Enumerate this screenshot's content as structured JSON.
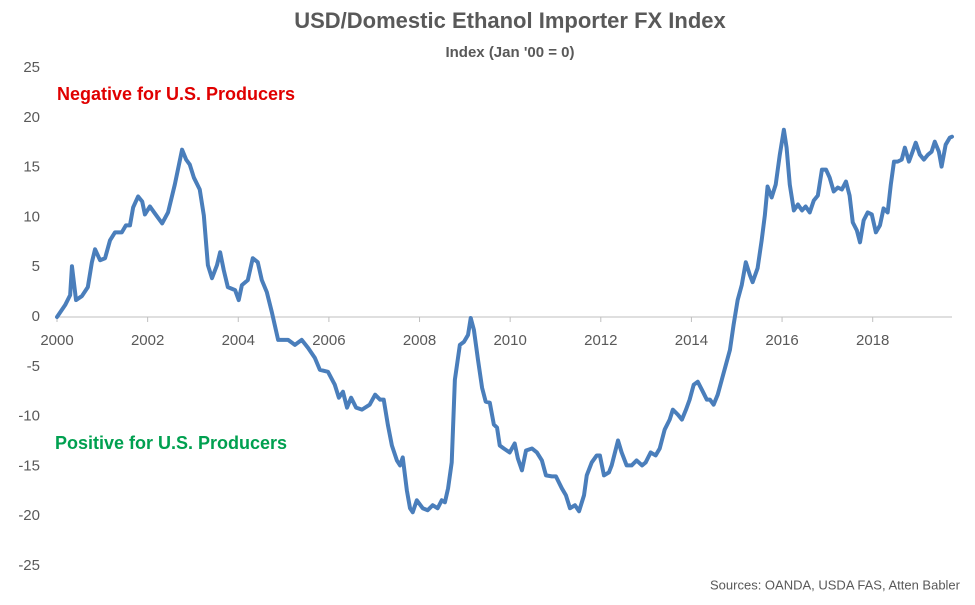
{
  "chart_data": {
    "type": "line",
    "title": "USD/Domestic Ethanol Importer FX Index",
    "subtitle": "Index (Jan '00 = 0)",
    "annotations": [
      {
        "text": "Negative for U.S. Producers",
        "color": "#e00000"
      },
      {
        "text": "Positive for U.S. Producers",
        "color": "#00a050"
      }
    ],
    "source": "Sources: OANDA, USDA FAS, Atten Babler",
    "xlim": [
      2000,
      2019.75
    ],
    "xticks": [
      2000,
      2002,
      2004,
      2006,
      2008,
      2010,
      2012,
      2014,
      2016,
      2018
    ],
    "ylim": [
      -25,
      25
    ],
    "yticks": [
      -25,
      -20,
      -15,
      -10,
      -5,
      0,
      5,
      10,
      15,
      20,
      25
    ],
    "grid": false,
    "x": [
      2000,
      2000.18,
      2000.29,
      2000.33,
      2000.42,
      2000.55,
      2000.68,
      2000.77,
      2000.84,
      2000.95,
      2001.06,
      2001.17,
      2001.28,
      2001.43,
      2001.52,
      2001.61,
      2001.68,
      2001.79,
      2001.88,
      2001.94,
      2002.05,
      2002.16,
      2002.32,
      2002.45,
      2002.6,
      2002.76,
      2002.85,
      2002.93,
      2003.02,
      2003.15,
      2003.24,
      2003.33,
      2003.42,
      2003.53,
      2003.6,
      2003.68,
      2003.77,
      2003.93,
      2004.01,
      2004.08,
      2004.21,
      2004.32,
      2004.43,
      2004.52,
      2004.63,
      2004.74,
      2004.88,
      2005.1,
      2005.25,
      2005.4,
      2005.54,
      2005.69,
      2005.8,
      2005.98,
      2006.13,
      2006.22,
      2006.31,
      2006.4,
      2006.49,
      2006.6,
      2006.73,
      2006.9,
      2007.02,
      2007.13,
      2007.21,
      2007.3,
      2007.39,
      2007.5,
      2007.57,
      2007.63,
      2007.72,
      2007.79,
      2007.85,
      2007.94,
      2008.07,
      2008.18,
      2008.29,
      2008.4,
      2008.49,
      2008.56,
      2008.63,
      2008.71,
      2008.78,
      2008.89,
      2008.98,
      2009.07,
      2009.13,
      2009.2,
      2009.29,
      2009.38,
      2009.46,
      2009.55,
      2009.64,
      2009.71,
      2009.77,
      2009.86,
      2009.99,
      2010.1,
      2010.17,
      2010.26,
      2010.35,
      2010.48,
      2010.59,
      2010.7,
      2010.79,
      2010.92,
      2011.01,
      2011.14,
      2011.23,
      2011.32,
      2011.43,
      2011.52,
      2011.63,
      2011.69,
      2011.8,
      2011.91,
      2011.98,
      2012.07,
      2012.18,
      2012.24,
      2012.38,
      2012.46,
      2012.57,
      2012.68,
      2012.79,
      2012.91,
      2012.99,
      2013.1,
      2013.21,
      2013.3,
      2013.41,
      2013.52,
      2013.59,
      2013.7,
      2013.79,
      2013.88,
      2013.96,
      2014.05,
      2014.14,
      2014.23,
      2014.34,
      2014.41,
      2014.49,
      2014.58,
      2014.67,
      2014.76,
      2014.85,
      2014.93,
      2015.02,
      2015.11,
      2015.2,
      2015.29,
      2015.35,
      2015.46,
      2015.55,
      2015.62,
      2015.68,
      2015.77,
      2015.86,
      2015.95,
      2016.04,
      2016.1,
      2016.17,
      2016.26,
      2016.35,
      2016.44,
      2016.52,
      2016.61,
      2016.7,
      2016.79,
      2016.88,
      2016.97,
      2017.05,
      2017.14,
      2017.23,
      2017.32,
      2017.41,
      2017.49,
      2017.56,
      2017.65,
      2017.72,
      2017.8,
      2017.89,
      2017.98,
      2018.07,
      2018.16,
      2018.24,
      2018.33,
      2018.4,
      2018.47,
      2018.55,
      2018.64,
      2018.71,
      2018.8,
      2018.88,
      2018.95,
      2019.04,
      2019.13,
      2019.22,
      2019.3,
      2019.37,
      2019.46,
      2019.52,
      2019.61,
      2019.7,
      2019.75
    ],
    "series": [
      {
        "name": "USD/Domestic Ethanol Importer FX Index",
        "color": "#4a7ebb",
        "values": [
          0,
          1.2,
          2.2,
          5.1,
          1.7,
          2.1,
          3.0,
          5.5,
          6.8,
          5.7,
          5.9,
          7.7,
          8.5,
          8.5,
          9.2,
          9.2,
          11.0,
          12.1,
          11.6,
          10.3,
          11.1,
          10.4,
          9.4,
          10.5,
          13.3,
          16.8,
          15.8,
          15.3,
          14.0,
          12.8,
          10.2,
          5.2,
          3.9,
          5.2,
          6.5,
          4.7,
          3.0,
          2.7,
          1.7,
          3.2,
          3.7,
          5.9,
          5.5,
          3.7,
          2.5,
          0.5,
          -2.3,
          -2.3,
          -2.8,
          -2.3,
          -3.1,
          -4.1,
          -5.3,
          -5.5,
          -6.8,
          -8.1,
          -7.5,
          -9.1,
          -8.1,
          -9.1,
          -9.3,
          -8.8,
          -7.8,
          -8.3,
          -8.3,
          -10.8,
          -12.9,
          -14.4,
          -14.9,
          -14.1,
          -17.4,
          -19.2,
          -19.6,
          -18.4,
          -19.2,
          -19.4,
          -18.9,
          -19.2,
          -18.4,
          -18.6,
          -17.2,
          -14.6,
          -6.3,
          -2.8,
          -2.5,
          -1.8,
          -0.1,
          -1.3,
          -4.3,
          -7.1,
          -8.5,
          -8.6,
          -10.8,
          -11.1,
          -12.9,
          -13.2,
          -13.6,
          -12.7,
          -14.2,
          -15.4,
          -13.4,
          -13.2,
          -13.6,
          -14.4,
          -15.9,
          -16.0,
          -16.0,
          -17.2,
          -17.9,
          -19.2,
          -18.9,
          -19.5,
          -17.9,
          -15.9,
          -14.6,
          -13.9,
          -13.9,
          -15.9,
          -15.6,
          -14.9,
          -12.4,
          -13.6,
          -14.9,
          -14.9,
          -14.4,
          -14.9,
          -14.6,
          -13.6,
          -13.9,
          -13.2,
          -11.3,
          -10.3,
          -9.3,
          -9.8,
          -10.3,
          -9.3,
          -8.3,
          -6.8,
          -6.5,
          -7.3,
          -8.3,
          -8.3,
          -8.8,
          -7.8,
          -6.3,
          -4.8,
          -3.3,
          -0.8,
          1.7,
          3.2,
          5.5,
          4.2,
          3.5,
          4.9,
          7.7,
          10.2,
          13.1,
          12.0,
          13.3,
          16.3,
          18.8,
          17.0,
          13.3,
          10.7,
          11.3,
          10.7,
          11.1,
          10.5,
          11.7,
          12.2,
          14.8,
          14.8,
          14.0,
          12.6,
          13.0,
          12.8,
          13.6,
          12.2,
          9.5,
          8.7,
          7.5,
          9.7,
          10.5,
          10.3,
          8.5,
          9.2,
          10.9,
          10.5,
          13.3,
          15.6,
          15.6,
          15.8,
          17.0,
          15.6,
          16.6,
          17.5,
          16.3,
          15.8,
          16.3,
          16.6,
          17.6,
          16.6,
          15.1,
          17.3,
          18.0,
          18.1
        ]
      }
    ]
  }
}
